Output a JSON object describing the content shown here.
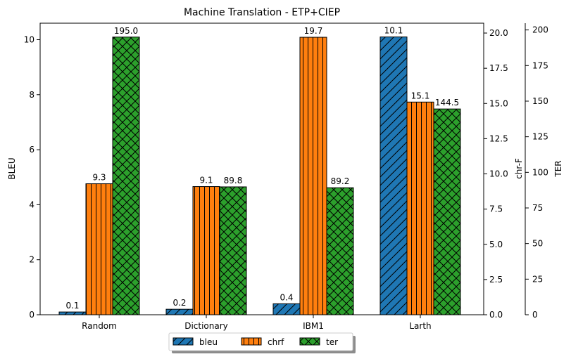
{
  "chart_data": {
    "type": "bar",
    "title": "Machine Translation - ETP+CIEP",
    "categories": [
      "Random",
      "Dictionary",
      "IBM1",
      "Larth"
    ],
    "series": [
      {
        "name": "bleu",
        "axis": "BLEU",
        "color": "#1f77b4",
        "hatch": "diagonal",
        "values": [
          0.1,
          0.2,
          0.4,
          10.1
        ]
      },
      {
        "name": "chrf",
        "axis": "chr-F",
        "color": "#ff7f0e",
        "hatch": "vertical",
        "values": [
          9.3,
          9.1,
          19.7,
          15.1
        ]
      },
      {
        "name": "ter",
        "axis": "TER",
        "color": "#2ca02c",
        "hatch": "cross",
        "values": [
          195.0,
          89.8,
          89.2,
          144.5
        ]
      }
    ],
    "data_labels": [
      [
        "0.1",
        "0.2",
        "0.4",
        "10.1"
      ],
      [
        "9.3",
        "9.1",
        "19.7",
        "15.1"
      ],
      [
        "195.0",
        "89.8",
        "89.2",
        "144.5"
      ]
    ],
    "axes": {
      "bleu": {
        "label": "BLEU",
        "ylim": [
          0,
          10.6
        ],
        "ticks": [
          0,
          2,
          4,
          6,
          8,
          10
        ],
        "tick_labels": [
          "0",
          "2",
          "4",
          "6",
          "8",
          "10"
        ]
      },
      "chrf": {
        "label": "chr-F",
        "ylim": [
          0,
          20.7
        ],
        "ticks": [
          0,
          2.5,
          5,
          7.5,
          10,
          12.5,
          15,
          17.5,
          20
        ],
        "tick_labels": [
          "0.0",
          "2.5",
          "5.0",
          "7.5",
          "10.0",
          "12.5",
          "15.0",
          "17.5",
          "20.0"
        ]
      },
      "ter": {
        "label": "TER",
        "ylim": [
          0,
          204.75
        ],
        "ticks": [
          0,
          25,
          50,
          75,
          100,
          125,
          150,
          175,
          200
        ],
        "tick_labels": [
          "0",
          "25",
          "50",
          "75",
          "100",
          "125",
          "150",
          "175",
          "200"
        ]
      }
    },
    "legend": {
      "placement": "bottom-center",
      "entries": [
        "bleu",
        "chrf",
        "ter"
      ]
    },
    "grid": false
  }
}
